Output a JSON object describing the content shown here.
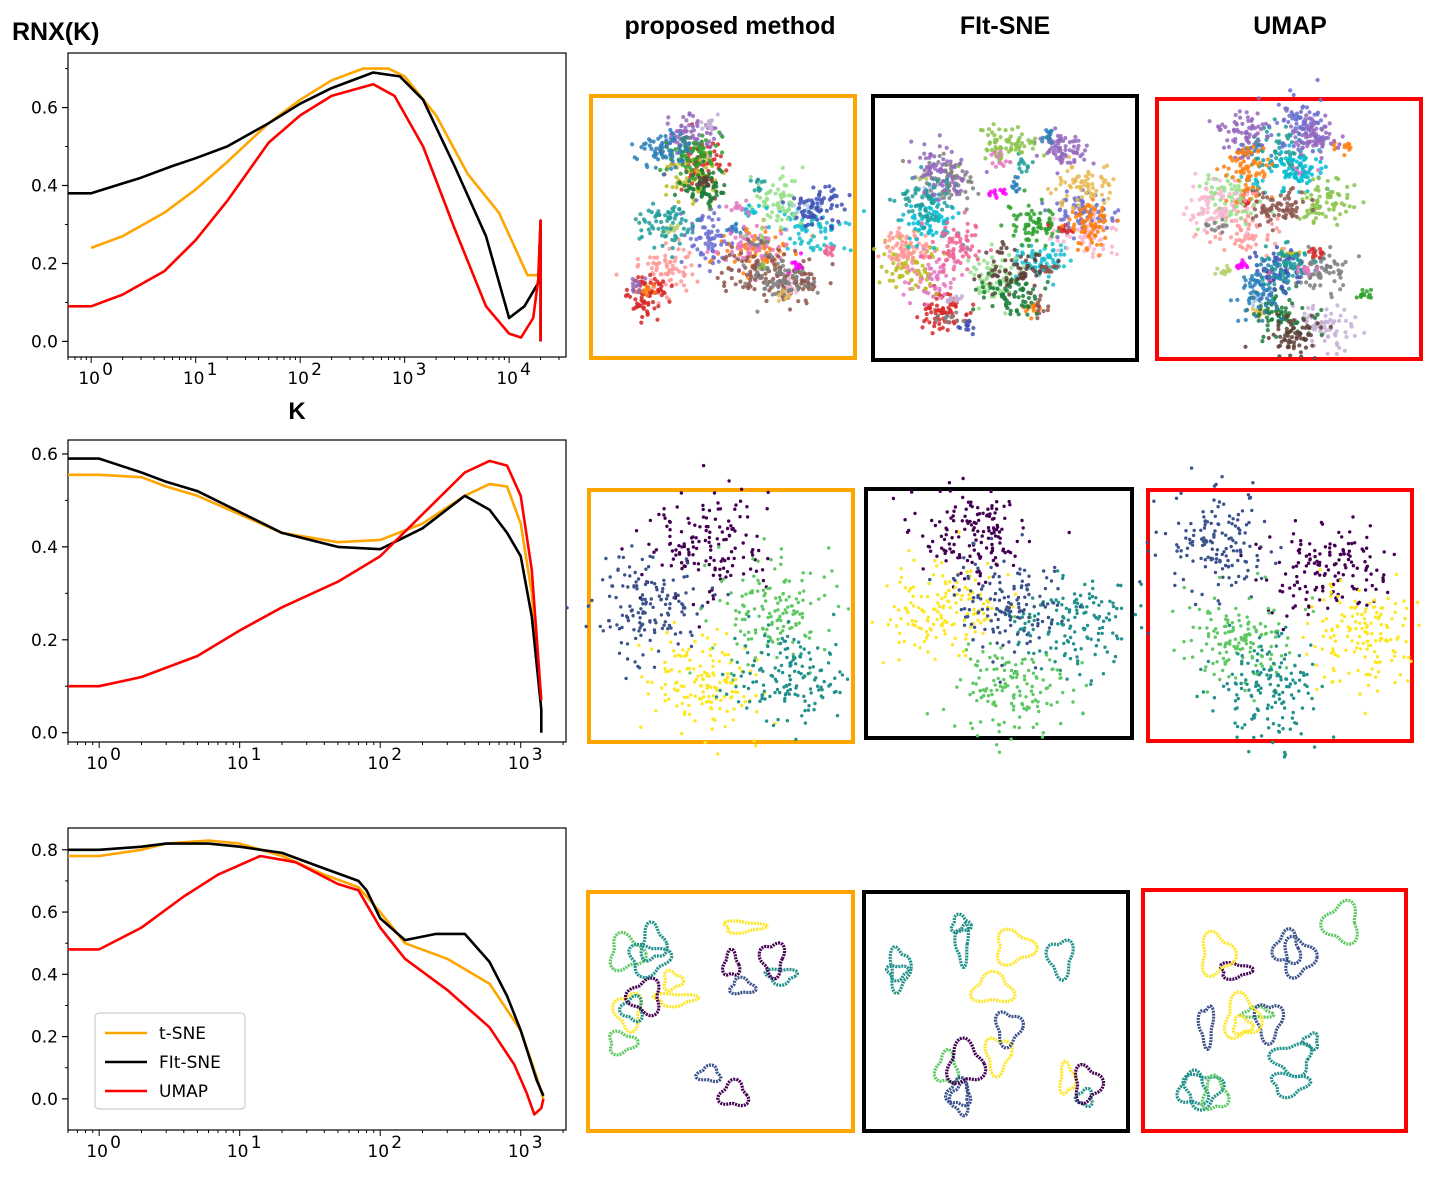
{
  "headers": {
    "ylabel": "RNX(K)",
    "col1": "proposed method",
    "col2": "FIt-SNE",
    "col3": "UMAP",
    "xlabel": "K"
  },
  "colors": {
    "tsne": "#ffa500",
    "fitsne": "#000000",
    "umap": "#ff0000"
  },
  "legend": [
    "t-SNE",
    "FIt-SNE",
    "UMAP"
  ],
  "chart_data": [
    {
      "type": "line",
      "xlabel": "K",
      "ylabel": "RNX(K)",
      "xscale": "log",
      "xlim": [
        0.6,
        35000
      ],
      "ylim": [
        -0.04,
        0.74
      ],
      "x_ticks": [
        "10^0",
        "10^1",
        "10^2",
        "10^3",
        "10^4"
      ],
      "y_ticks": [
        "0.0",
        "0.2",
        "0.4",
        "0.6"
      ],
      "series": [
        {
          "name": "t-SNE",
          "color": "#ffa500",
          "x": [
            1,
            1,
            2,
            5,
            10,
            20,
            50,
            100,
            200,
            400,
            700,
            1000,
            2000,
            4000,
            8000,
            15000,
            19000,
            20000,
            20000
          ],
          "y": [
            0.24,
            0.24,
            0.27,
            0.33,
            0.39,
            0.46,
            0.56,
            0.62,
            0.67,
            0.7,
            0.7,
            0.68,
            0.58,
            0.43,
            0.33,
            0.17,
            0.17,
            0.31,
            0.0
          ]
        },
        {
          "name": "FIt-SNE",
          "color": "#000000",
          "x": [
            0.6,
            1,
            3,
            6,
            10,
            20,
            50,
            100,
            200,
            500,
            900,
            1500,
            3000,
            6000,
            10000,
            14000,
            19000,
            20000,
            20000
          ],
          "y": [
            0.38,
            0.38,
            0.42,
            0.45,
            0.47,
            0.5,
            0.56,
            0.61,
            0.65,
            0.69,
            0.68,
            0.62,
            0.45,
            0.27,
            0.06,
            0.09,
            0.15,
            0.31,
            0.0
          ]
        },
        {
          "name": "UMAP",
          "color": "#ff0000",
          "x": [
            0.6,
            1,
            2,
            5,
            10,
            20,
            50,
            100,
            200,
            500,
            800,
            1500,
            3000,
            6000,
            10000,
            13000,
            17000,
            19000,
            20000,
            20000
          ],
          "y": [
            0.09,
            0.09,
            0.12,
            0.18,
            0.26,
            0.36,
            0.51,
            0.58,
            0.63,
            0.66,
            0.63,
            0.5,
            0.29,
            0.09,
            0.02,
            0.01,
            0.06,
            0.16,
            0.31,
            0.0
          ]
        }
      ]
    },
    {
      "type": "line",
      "xscale": "log",
      "xlim": [
        0.6,
        2100
      ],
      "ylim": [
        -0.02,
        0.63
      ],
      "x_ticks": [
        "10^0",
        "10^1",
        "10^2",
        "10^3"
      ],
      "y_ticks": [
        "0.0",
        "0.2",
        "0.4",
        "0.6"
      ],
      "series": [
        {
          "name": "t-SNE",
          "color": "#ffa500",
          "x": [
            0.6,
            1,
            2,
            3,
            5,
            10,
            20,
            50,
            100,
            200,
            400,
            600,
            800,
            1000,
            1200,
            1400
          ],
          "y": [
            0.555,
            0.555,
            0.55,
            0.53,
            0.51,
            0.47,
            0.43,
            0.41,
            0.415,
            0.45,
            0.51,
            0.535,
            0.53,
            0.45,
            0.3,
            0.07
          ]
        },
        {
          "name": "FIt-SNE",
          "color": "#000000",
          "x": [
            0.6,
            1,
            2,
            3,
            5,
            10,
            20,
            50,
            100,
            200,
            400,
            600,
            800,
            1000,
            1200,
            1400,
            1400
          ],
          "y": [
            0.59,
            0.59,
            0.56,
            0.54,
            0.52,
            0.475,
            0.43,
            0.4,
            0.395,
            0.44,
            0.51,
            0.48,
            0.43,
            0.38,
            0.25,
            0.05,
            0.0
          ]
        },
        {
          "name": "UMAP",
          "color": "#ff0000",
          "x": [
            0.6,
            1,
            2,
            5,
            10,
            20,
            50,
            100,
            200,
            400,
            600,
            800,
            1000,
            1200,
            1400
          ],
          "y": [
            0.1,
            0.1,
            0.12,
            0.165,
            0.22,
            0.27,
            0.325,
            0.38,
            0.47,
            0.56,
            0.585,
            0.575,
            0.51,
            0.35,
            0.07
          ]
        }
      ]
    },
    {
      "type": "line",
      "xscale": "log",
      "xlim": [
        0.6,
        2100
      ],
      "ylim": [
        -0.1,
        0.87
      ],
      "x_ticks": [
        "10^0",
        "10^1",
        "10^2",
        "10^3"
      ],
      "y_ticks": [
        "0.0",
        "0.2",
        "0.4",
        "0.6",
        "0.8"
      ],
      "legend_position": "lower left",
      "series": [
        {
          "name": "t-SNE",
          "color": "#ffa500",
          "x": [
            0.6,
            1,
            2,
            3,
            6,
            10,
            20,
            40,
            70,
            100,
            150,
            300,
            600,
            1000,
            1300,
            1450
          ],
          "y": [
            0.78,
            0.78,
            0.8,
            0.82,
            0.83,
            0.82,
            0.78,
            0.72,
            0.68,
            0.6,
            0.5,
            0.45,
            0.37,
            0.22,
            0.07,
            0.0
          ]
        },
        {
          "name": "FIt-SNE",
          "color": "#000000",
          "x": [
            0.6,
            1,
            2,
            3,
            6,
            10,
            20,
            40,
            70,
            80,
            100,
            150,
            250,
            400,
            600,
            800,
            1000,
            1300,
            1450
          ],
          "y": [
            0.8,
            0.8,
            0.81,
            0.82,
            0.82,
            0.81,
            0.79,
            0.74,
            0.7,
            0.67,
            0.58,
            0.51,
            0.53,
            0.53,
            0.44,
            0.33,
            0.22,
            0.06,
            0.01
          ]
        },
        {
          "name": "UMAP",
          "color": "#ff0000",
          "x": [
            0.6,
            1,
            2,
            4,
            7,
            14,
            25,
            50,
            70,
            100,
            150,
            300,
            600,
            900,
            1100,
            1250,
            1400,
            1450
          ],
          "y": [
            0.48,
            0.48,
            0.55,
            0.65,
            0.72,
            0.78,
            0.76,
            0.69,
            0.67,
            0.55,
            0.45,
            0.35,
            0.23,
            0.11,
            0.02,
            -0.05,
            -0.03,
            0.0
          ]
        }
      ]
    }
  ],
  "embeddings": [
    [
      {
        "label": "proposed method",
        "border": "#ffa500",
        "kind": "blobs"
      },
      {
        "label": "FIt-SNE",
        "border": "#000000",
        "kind": "blobs"
      },
      {
        "label": "UMAP",
        "border": "#ff0000",
        "kind": "blobs"
      }
    ],
    [
      {
        "label": "proposed method",
        "border": "#ffa500",
        "kind": "dots"
      },
      {
        "label": "FIt-SNE",
        "border": "#000000",
        "kind": "dots"
      },
      {
        "label": "UMAP",
        "border": "#ff0000",
        "kind": "dots"
      }
    ],
    [
      {
        "label": "proposed method",
        "border": "#ffa500",
        "kind": "loops"
      },
      {
        "label": "FIt-SNE",
        "border": "#000000",
        "kind": "loops"
      },
      {
        "label": "UMAP",
        "border": "#ff0000",
        "kind": "loops"
      }
    ]
  ]
}
